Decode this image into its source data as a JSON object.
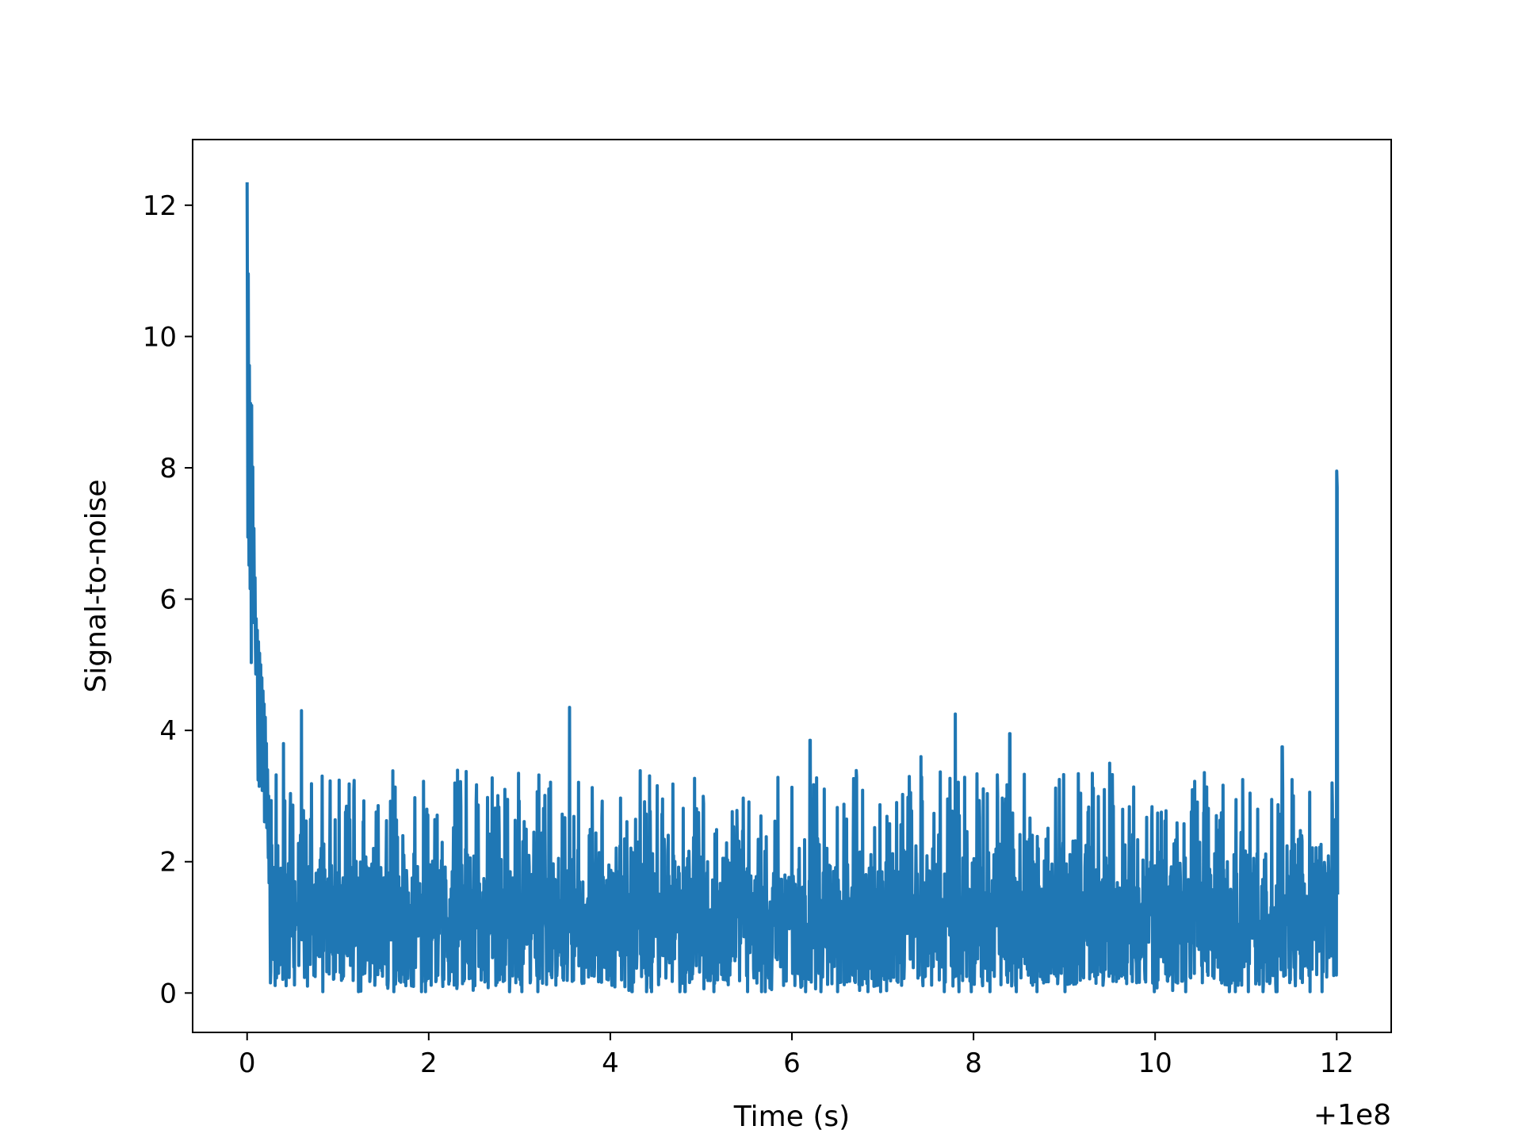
{
  "chart_data": {
    "type": "line",
    "title": "",
    "xlabel": "Time (s)",
    "ylabel": "Signal-to-noise",
    "x_offset_label": "+1e8",
    "xlim": [
      -0.6,
      12.6
    ],
    "ylim": [
      -0.6,
      13.0
    ],
    "x_ticks": [
      0,
      2,
      4,
      6,
      8,
      10,
      12
    ],
    "x_tick_labels": [
      "0",
      "2",
      "4",
      "6",
      "8",
      "10",
      "12"
    ],
    "y_ticks": [
      0,
      2,
      4,
      6,
      8,
      10,
      12
    ],
    "y_tick_labels": [
      "0",
      "2",
      "4",
      "6",
      "8",
      "10",
      "12"
    ],
    "grid": false,
    "series": [
      {
        "color": "#1f77b4",
        "x": [
          0.0,
          0.03,
          0.05,
          0.08,
          0.1,
          0.15,
          0.2,
          0.25,
          0.3,
          0.4,
          0.5,
          0.6,
          0.8,
          1.0,
          1.5,
          2.0,
          2.5,
          3.0,
          3.55,
          4.0,
          4.5,
          5.0,
          5.5,
          6.0,
          6.2,
          6.5,
          7.0,
          7.42,
          7.5,
          7.8,
          8.0,
          8.4,
          8.5,
          9.0,
          9.5,
          10.0,
          10.5,
          11.0,
          11.4,
          11.5,
          11.8,
          11.95,
          12.0,
          12.02
        ],
        "y": [
          12.35,
          9.0,
          8.95,
          6.7,
          5.7,
          5.0,
          4.2,
          2.6,
          1.5,
          3.8,
          1.3,
          4.3,
          1.2,
          1.0,
          1.1,
          1.2,
          1.0,
          1.2,
          4.35,
          1.1,
          1.2,
          1.3,
          1.2,
          1.4,
          3.85,
          1.4,
          1.2,
          3.6,
          1.1,
          4.25,
          1.2,
          3.95,
          1.3,
          1.2,
          3.5,
          1.3,
          1.2,
          1.1,
          3.75,
          1.2,
          1.2,
          3.2,
          7.95,
          1.3
        ],
        "noise_band": {
          "x_start": 0.25,
          "x_end": 12.0,
          "typical_min": 0.1,
          "typical_max": 2.6,
          "mean": 1.2
        }
      }
    ]
  }
}
